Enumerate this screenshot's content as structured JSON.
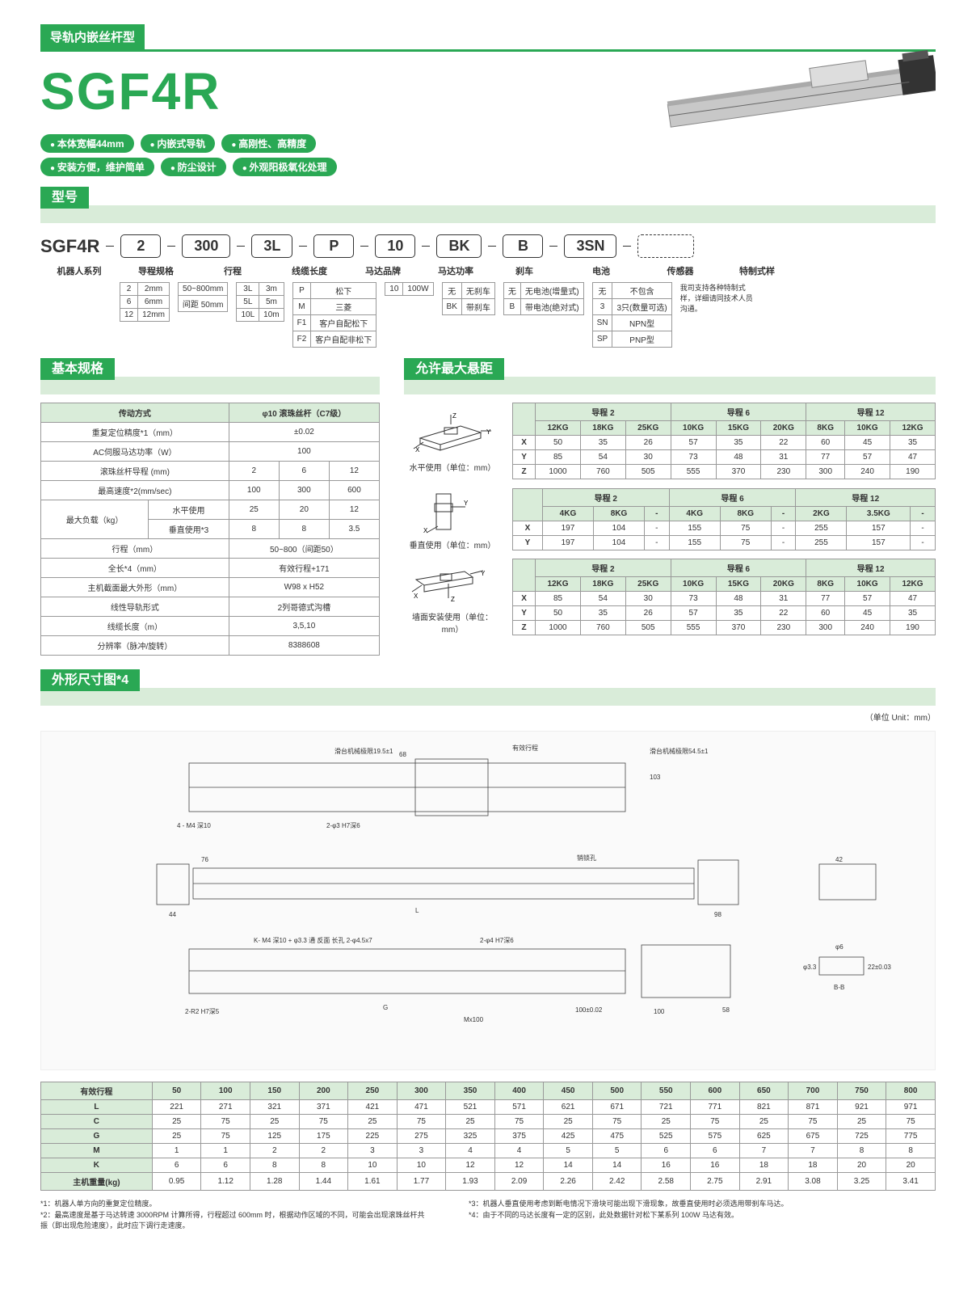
{
  "header": {
    "category": "导轨内嵌丝杆型",
    "product": "SGF4R",
    "pills": [
      [
        "本体宽幅44mm",
        "内嵌式导轨",
        "高刚性、高精度"
      ],
      [
        "安装方便，维护简单",
        "防尘设计",
        "外观阳极氧化处理"
      ]
    ]
  },
  "model": {
    "section": "型号",
    "base": "SGF4R",
    "segs": [
      "2",
      "300",
      "3L",
      "P",
      "10",
      "BK",
      "B",
      "3SN"
    ],
    "labels": [
      "机器人系列",
      "导程规格",
      "行程",
      "线缆长度",
      "马达品牌",
      "马达功率",
      "刹车",
      "电池",
      "传感器",
      "特制式样"
    ],
    "groups": {
      "lead": {
        "rows": [
          [
            "2",
            "2mm"
          ],
          [
            "6",
            "6mm"
          ],
          [
            "12",
            "12mm"
          ]
        ]
      },
      "stroke": {
        "rows": [
          [
            "50~800mm"
          ],
          [
            "间距 50mm"
          ]
        ]
      },
      "cable": {
        "rows": [
          [
            "3L",
            "3m"
          ],
          [
            "5L",
            "5m"
          ],
          [
            "10L",
            "10m"
          ]
        ]
      },
      "brand": {
        "rows": [
          [
            "P",
            "松下"
          ],
          [
            "M",
            "三菱"
          ],
          [
            "F1",
            "客户自配松下"
          ],
          [
            "F2",
            "客户自配非松下"
          ]
        ]
      },
      "power": {
        "rows": [
          [
            "10",
            "100W"
          ]
        ]
      },
      "brake": {
        "rows": [
          [
            "无",
            "无刹车"
          ],
          [
            "BK",
            "带刹车"
          ]
        ]
      },
      "battery": {
        "rows": [
          [
            "无",
            "无电池(增量式)"
          ],
          [
            "B",
            "带电池(绝对式)"
          ]
        ]
      },
      "sensor": {
        "rows": [
          [
            "无",
            "不包含"
          ],
          [
            "3",
            "3只(数量可选)"
          ],
          [
            "SN",
            "NPN型"
          ],
          [
            "SP",
            "PNP型"
          ]
        ]
      },
      "custom": "我司支持各种特制式样，详细请同技术人员沟通。"
    }
  },
  "basic": {
    "section": "基本规格",
    "headers": {
      "drive": "传动方式",
      "drive_val": "φ10 滚珠丝杆（C7级）"
    },
    "rows": [
      {
        "label": "重复定位精度*1（mm）",
        "vals": [
          "±0.02"
        ]
      },
      {
        "label": "AC伺服马达功率（W）",
        "vals": [
          "100"
        ]
      },
      {
        "label": "滚珠丝杆导程 (mm)",
        "vals": [
          "2",
          "6",
          "12"
        ]
      },
      {
        "label": "最高速度*2(mm/sec)",
        "vals": [
          "100",
          "300",
          "600"
        ]
      },
      {
        "label2": "水平使用",
        "vals": [
          "25",
          "20",
          "12"
        ],
        "group": "最大负载（kg）"
      },
      {
        "label2": "垂直使用*3",
        "vals": [
          "8",
          "8",
          "3.5"
        ]
      },
      {
        "label": "行程（mm）",
        "vals": [
          "50~800（间距50）"
        ]
      },
      {
        "label": "全长*4（mm）",
        "vals": [
          "有效行程+171"
        ]
      },
      {
        "label": "主机截面最大外形（mm）",
        "vals": [
          "W98 x H52"
        ]
      },
      {
        "label": "线性导轨形式",
        "vals": [
          "2列哥德式沟槽"
        ]
      },
      {
        "label": "线缆长度（m）",
        "vals": [
          "3,5,10"
        ]
      },
      {
        "label": "分辨率（脉冲/旋转）",
        "vals": [
          "8388608"
        ]
      }
    ]
  },
  "overhang": {
    "section": "允许最大悬距",
    "lead_labels": [
      "导程 2",
      "导程 6",
      "导程 12"
    ],
    "blocks": [
      {
        "caption": "水平使用（单位：mm）",
        "weights": [
          "12KG",
          "18KG",
          "25KG",
          "10KG",
          "15KG",
          "20KG",
          "8KG",
          "10KG",
          "12KG"
        ],
        "rows": [
          [
            "X",
            "50",
            "35",
            "26",
            "57",
            "35",
            "22",
            "60",
            "45",
            "35"
          ],
          [
            "Y",
            "85",
            "54",
            "30",
            "73",
            "48",
            "31",
            "77",
            "57",
            "47"
          ],
          [
            "Z",
            "1000",
            "760",
            "505",
            "555",
            "370",
            "230",
            "300",
            "240",
            "190"
          ]
        ]
      },
      {
        "caption": "垂直使用（单位：mm）",
        "weights": [
          "4KG",
          "8KG",
          "-",
          "4KG",
          "8KG",
          "-",
          "2KG",
          "3.5KG",
          "-"
        ],
        "rows": [
          [
            "X",
            "197",
            "104",
            "-",
            "155",
            "75",
            "-",
            "255",
            "157",
            "-"
          ],
          [
            "Y",
            "197",
            "104",
            "-",
            "155",
            "75",
            "-",
            "255",
            "157",
            "-"
          ]
        ]
      },
      {
        "caption": "墙面安装使用（单位：mm）",
        "weights": [
          "12KG",
          "18KG",
          "25KG",
          "10KG",
          "15KG",
          "20KG",
          "8KG",
          "10KG",
          "12KG"
        ],
        "rows": [
          [
            "X",
            "85",
            "54",
            "30",
            "73",
            "48",
            "31",
            "77",
            "57",
            "47"
          ],
          [
            "Y",
            "50",
            "35",
            "26",
            "57",
            "35",
            "22",
            "60",
            "45",
            "35"
          ],
          [
            "Z",
            "1000",
            "760",
            "505",
            "555",
            "370",
            "230",
            "300",
            "240",
            "190"
          ]
        ]
      }
    ]
  },
  "dim": {
    "section": "外形尺寸图*4",
    "unit": "（单位 Unit：mm）",
    "drawing_labels": {
      "top_left": "滑台机械极限19.5±1",
      "top_right": "滑台机械极限54.5±1",
      "eff_stroke": "有效行程",
      "k_note": "K- M4 深10 + φ3.3 通\n反面 长孔 2-φ4.5x7",
      "hole1": "4 - M4 深10",
      "hole2": "2-φ3 H7深6",
      "hole3": "2-φ4 H7深6",
      "hole4": "2-R2 H7深5",
      "dowel": "销锁孔",
      "bb": "B-B",
      "mx": "Mx100"
    },
    "headers": [
      "有效行程",
      "50",
      "100",
      "150",
      "200",
      "250",
      "300",
      "350",
      "400",
      "450",
      "500",
      "550",
      "600",
      "650",
      "700",
      "750",
      "800"
    ],
    "rows": [
      [
        "L",
        "221",
        "271",
        "321",
        "371",
        "421",
        "471",
        "521",
        "571",
        "621",
        "671",
        "721",
        "771",
        "821",
        "871",
        "921",
        "971"
      ],
      [
        "C",
        "25",
        "75",
        "25",
        "75",
        "25",
        "75",
        "25",
        "75",
        "25",
        "75",
        "25",
        "75",
        "25",
        "75",
        "25",
        "75"
      ],
      [
        "G",
        "25",
        "75",
        "125",
        "175",
        "225",
        "275",
        "325",
        "375",
        "425",
        "475",
        "525",
        "575",
        "625",
        "675",
        "725",
        "775"
      ],
      [
        "M",
        "1",
        "1",
        "2",
        "2",
        "3",
        "3",
        "4",
        "4",
        "5",
        "5",
        "6",
        "6",
        "7",
        "7",
        "8",
        "8"
      ],
      [
        "K",
        "6",
        "6",
        "8",
        "8",
        "10",
        "10",
        "12",
        "12",
        "14",
        "14",
        "16",
        "16",
        "18",
        "18",
        "20",
        "20"
      ],
      [
        "主机重量(kg)",
        "0.95",
        "1.12",
        "1.28",
        "1.44",
        "1.61",
        "1.77",
        "1.93",
        "2.09",
        "2.26",
        "2.42",
        "2.58",
        "2.75",
        "2.91",
        "3.08",
        "3.25",
        "3.41"
      ]
    ]
  },
  "footnotes": {
    "left": [
      "*1：机器人单方向的重复定位精度。",
      "*2：最高速度是基于马达转速 3000RPM 计算所得，行程超过 600mm 时，根据动作区域的不同，可能会出现滚珠丝杆共振（即出现危险速度），此时应下调行走速度。"
    ],
    "right": [
      "*3：机器人垂直使用考虑到断电情况下滑块可能出现下滑现象，故垂直使用时必须选用带刹车马达。",
      "*4：由于不同的马达长度有一定的区别，此处数据针对松下某系列 100W 马达有效。"
    ]
  },
  "colors": {
    "green": "#2aa854",
    "lightgreen": "#d9ecd9",
    "border": "#999"
  }
}
